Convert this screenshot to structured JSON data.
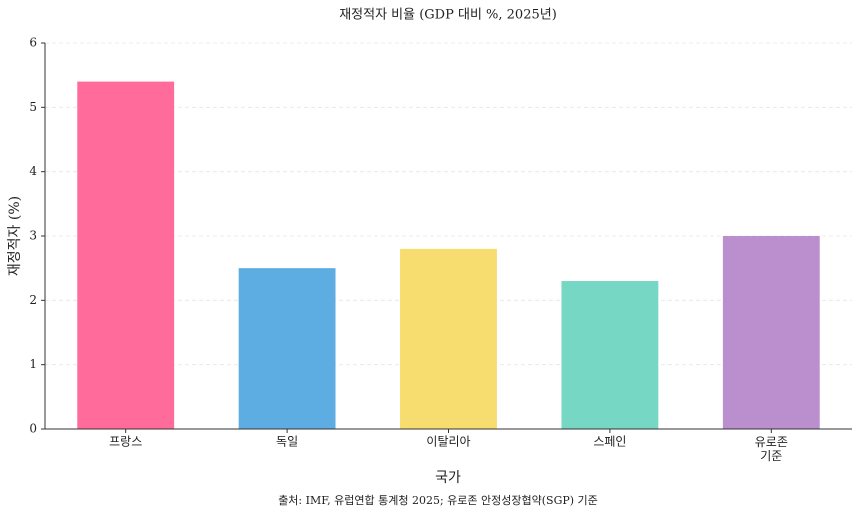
{
  "chart_data": {
    "type": "bar",
    "title": "재정적자 비율 (GDP 대비 %, 2025년)",
    "x_label": "국가",
    "y_label": "재정적자 (%)",
    "source": "출처: IMF, 유럽연합 통계청 2025; 유로존 안정성장협약(SGP) 기준",
    "categories": [
      "프랑스",
      "독일",
      "이탈리아",
      "스페인",
      "유로존\n기준"
    ],
    "values": [
      5.4,
      2.5,
      2.8,
      2.3,
      3.0
    ],
    "colors": [
      "#ff6b9a",
      "#5dade2",
      "#f7dc6f",
      "#76d7c4",
      "#bb8fce"
    ],
    "ylim": [
      0,
      6
    ],
    "yticks": [
      0,
      1,
      2,
      3,
      4,
      5,
      6
    ],
    "grid": true
  }
}
